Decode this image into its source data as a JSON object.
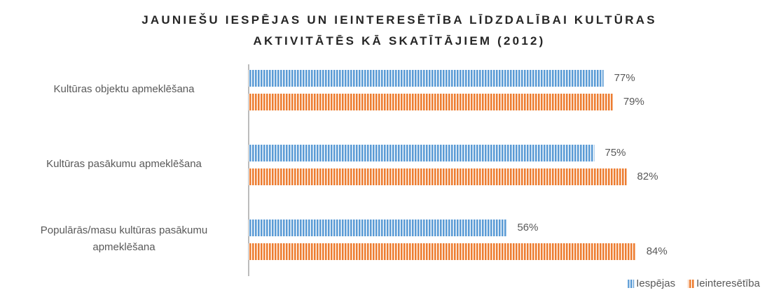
{
  "chart_data": {
    "type": "barh",
    "title": "JAUNIEŠU IESPĒJAS UN IEINTERESĒTĪBA LĪDZDALĪBAI KULTŪRAS AKTIVITĀTĒS KĀ SKATĪTĀJIEM  (2012)",
    "categories": [
      "Kultūras objektu apmeklēšana",
      "Kultūras pasākumu apmeklēšana",
      "Populārās/masu kultūras pasākumu apmeklēšana"
    ],
    "series": [
      {
        "name": "Iespējas",
        "color": "#5b9bd5",
        "values": [
          77,
          75,
          56
        ],
        "value_labels": [
          "77%",
          "75%",
          "56%"
        ]
      },
      {
        "name": "Ieinteresētība",
        "color": "#ed7d31",
        "values": [
          79,
          82,
          84
        ],
        "value_labels": [
          "79%",
          "82%",
          "84%"
        ]
      }
    ],
    "xlim": [
      0,
      100
    ],
    "legend": "bottom-right"
  }
}
